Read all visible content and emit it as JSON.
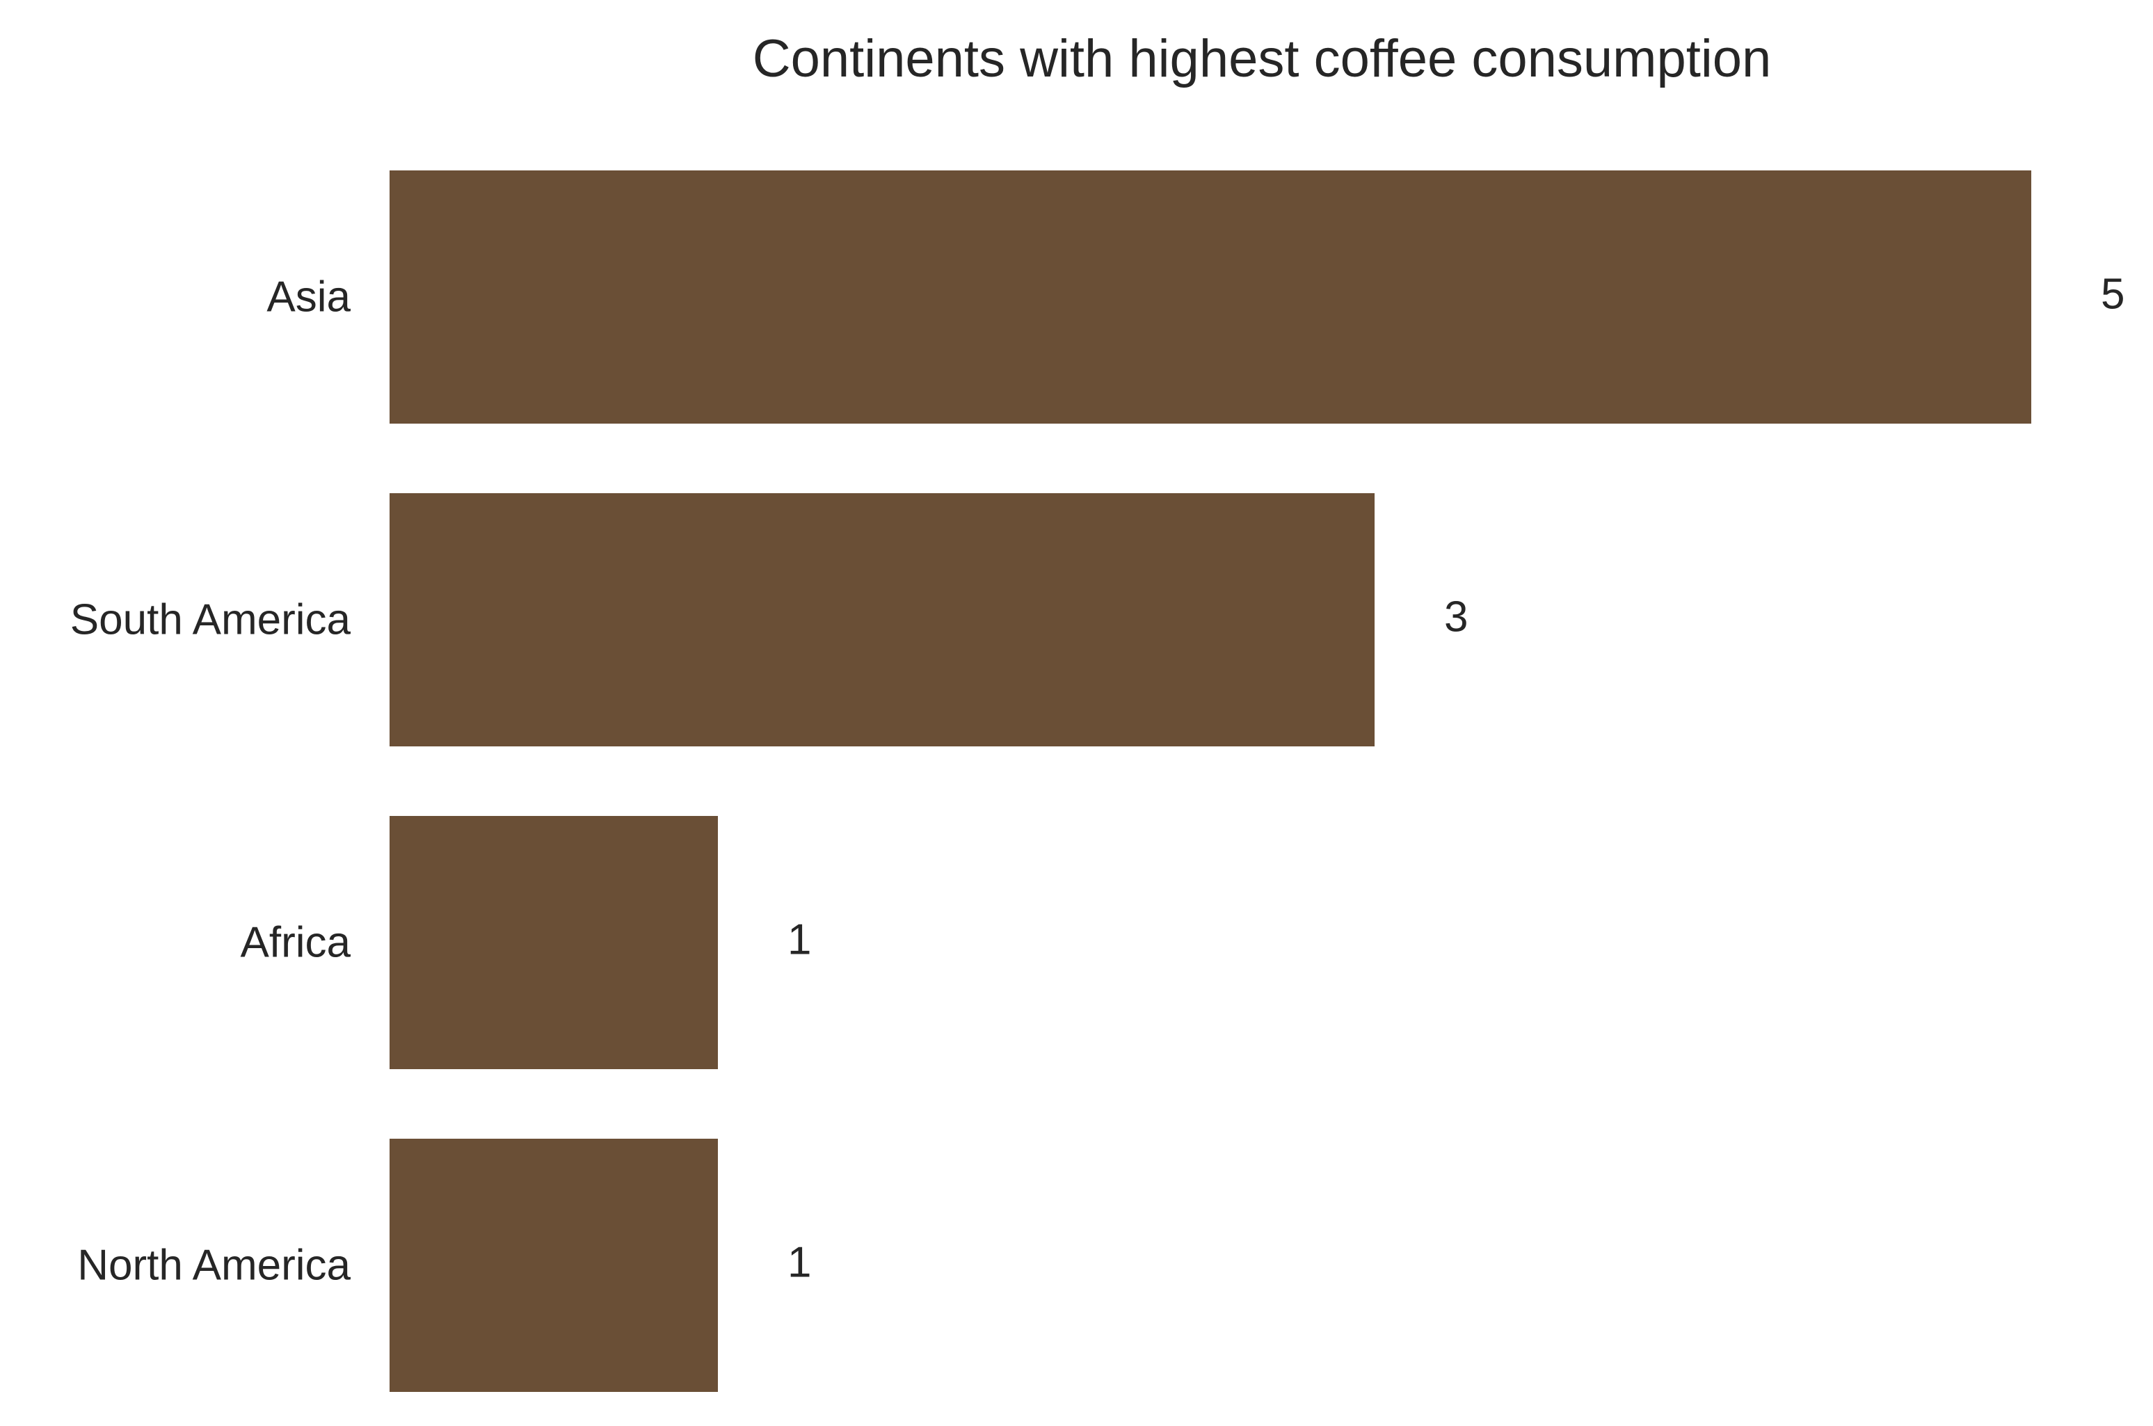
{
  "chart_data": {
    "type": "bar",
    "orientation": "horizontal",
    "title": "Continents with highest coffee consumption",
    "xlabel": "",
    "ylabel": "",
    "categories": [
      "Asia",
      "South America",
      "Africa",
      "North America"
    ],
    "values": [
      5,
      3,
      1,
      1
    ],
    "data_labels": [
      "5",
      "3",
      "1",
      "1"
    ],
    "xlim": [
      0,
      5.0
    ],
    "grid": false,
    "legend": "none",
    "bar_color": "#6a4f36",
    "text_color": "#262626"
  }
}
